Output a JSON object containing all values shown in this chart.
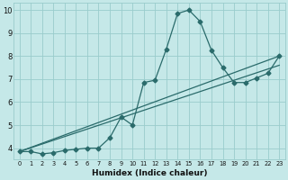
{
  "xlabel": "Humidex (Indice chaleur)",
  "ylabel": "",
  "xlim": [
    -0.5,
    23.5
  ],
  "ylim": [
    3.5,
    10.3
  ],
  "xticks": [
    0,
    1,
    2,
    3,
    4,
    5,
    6,
    7,
    8,
    9,
    10,
    11,
    12,
    13,
    14,
    15,
    16,
    17,
    18,
    19,
    20,
    21,
    22,
    23
  ],
  "yticks": [
    4,
    5,
    6,
    7,
    8,
    9,
    10
  ],
  "bg_color": "#c5e8e8",
  "line_color": "#2a6b6b",
  "grid_color": "#99cccc",
  "line1_x": [
    0,
    1,
    2,
    3,
    4,
    5,
    6,
    7,
    8,
    9,
    10,
    11,
    12,
    13,
    14,
    15,
    16,
    17,
    18,
    19,
    20,
    21,
    22,
    23
  ],
  "line1_y": [
    3.85,
    3.85,
    3.75,
    3.8,
    3.9,
    3.95,
    4.0,
    4.0,
    4.45,
    5.35,
    5.0,
    6.85,
    6.95,
    8.3,
    9.85,
    10.0,
    9.5,
    8.25,
    7.5,
    6.85,
    6.85,
    7.05,
    7.25,
    8.0
  ],
  "line2_x": [
    0,
    23
  ],
  "line2_y": [
    3.85,
    8.0
  ],
  "line3_x": [
    0,
    23
  ],
  "line3_y": [
    3.85,
    7.6
  ],
  "marker": "D",
  "markersize": 2.5,
  "xlabel_fontsize": 6.5,
  "xtick_fontsize": 4.8,
  "ytick_fontsize": 6.0
}
